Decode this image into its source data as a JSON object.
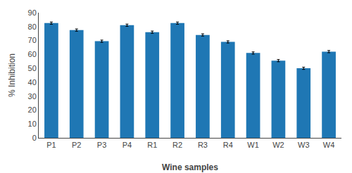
{
  "chart_data": {
    "type": "bar",
    "categories": [
      "P1",
      "P2",
      "P3",
      "P4",
      "R1",
      "R2",
      "R3",
      "R4",
      "W1",
      "W2",
      "W3",
      "W4"
    ],
    "values": [
      82.5,
      77.5,
      69.5,
      81.0,
      76.0,
      82.5,
      74.0,
      69.0,
      61.0,
      55.5,
      50.0,
      62.0
    ],
    "errors": [
      0.8,
      0.8,
      0.8,
      0.8,
      0.8,
      0.8,
      0.8,
      0.8,
      0.8,
      0.8,
      0.8,
      0.8
    ],
    "xlabel": "Wine samples",
    "ylabel": "% Inhibition",
    "ylim": [
      0,
      90
    ],
    "yticks": [
      0,
      10,
      20,
      30,
      40,
      50,
      60,
      70,
      80,
      90
    ],
    "grid": false
  }
}
